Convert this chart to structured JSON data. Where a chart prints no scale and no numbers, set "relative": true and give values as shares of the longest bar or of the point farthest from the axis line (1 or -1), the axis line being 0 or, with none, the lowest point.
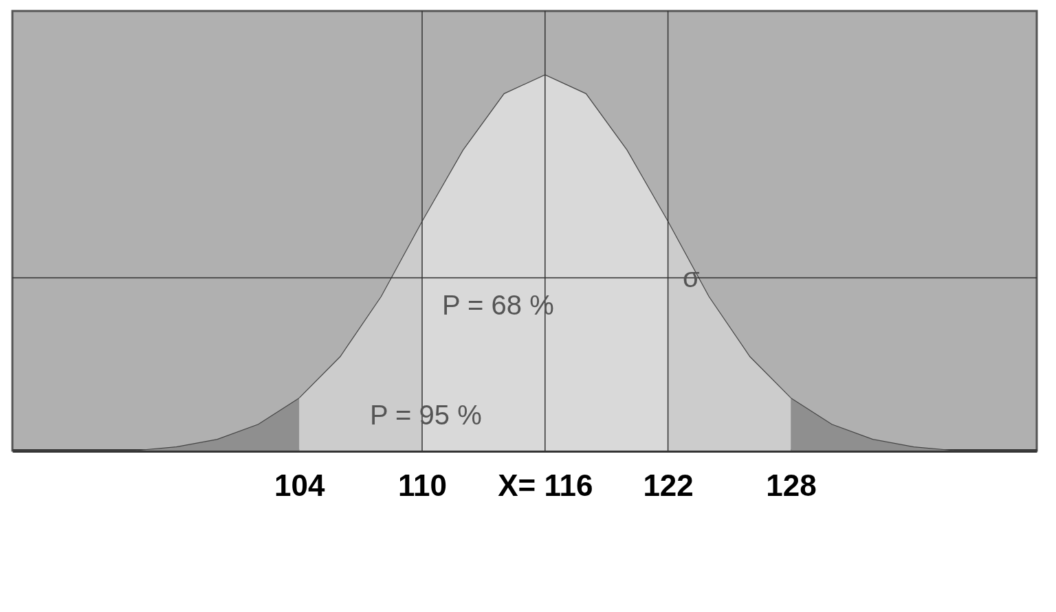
{
  "chart_data": {
    "type": "area",
    "relative": true,
    "xlim": [
      90,
      140
    ],
    "xticks": [
      104,
      110,
      {
        "value": 116,
        "label": "X= 116"
      },
      122,
      128
    ],
    "series": [
      {
        "color": "#8f8f8f",
        "x": [
          90,
          92,
          94,
          96,
          98,
          100,
          102,
          104
        ],
        "values": [
          0,
          0,
          0,
          0,
          0.01,
          0.03,
          0.07,
          0.14
        ]
      },
      {
        "color": "#cccccc",
        "x": [
          104,
          106,
          108,
          110
        ],
        "values": [
          0.14,
          0.25,
          0.41,
          0.61
        ]
      },
      {
        "color": "#d9d9d9",
        "x": [
          110,
          112,
          114,
          116,
          118,
          120,
          122
        ],
        "values": [
          0.61,
          0.8,
          0.95,
          1,
          0.95,
          0.8,
          0.61
        ]
      },
      {
        "color": "#cccccc",
        "x": [
          122,
          124,
          126,
          128
        ],
        "values": [
          0.61,
          0.41,
          0.25,
          0.14
        ]
      },
      {
        "color": "#8f8f8f",
        "x": [
          128,
          130,
          132,
          134,
          136,
          138,
          140
        ],
        "values": [
          0.14,
          0.07,
          0.03,
          0.01,
          0,
          0,
          0
        ]
      }
    ],
    "ref_lines": [
      {
        "axis": "x",
        "value": 116
      },
      {
        "axis": "y",
        "value": 0.46
      },
      {
        "axis": "x",
        "value": 110
      },
      {
        "axis": "x",
        "value": 122
      }
    ],
    "annotations": [
      "P = 68 %",
      "P = 95 %",
      "σ"
    ],
    "grid": false
  }
}
